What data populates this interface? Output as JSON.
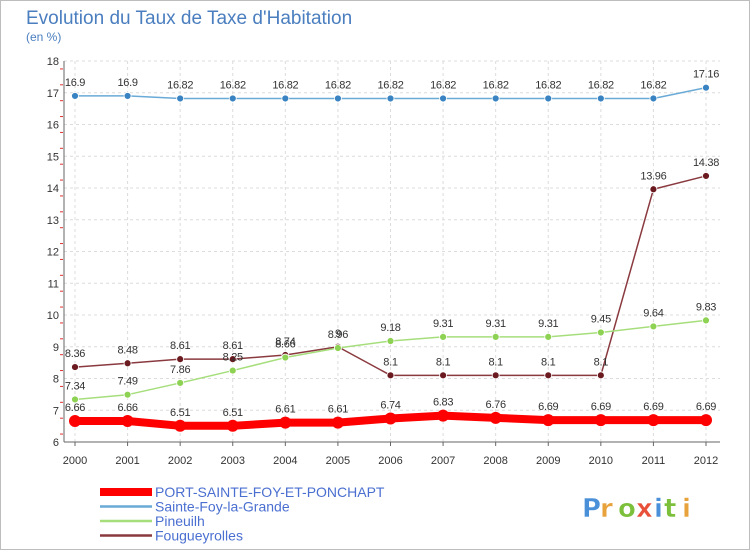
{
  "chart_data": {
    "type": "line",
    "title": "Evolution du Taux de Taxe d'Habitation",
    "subtitle": "(en %)",
    "x": [
      "2000",
      "2001",
      "2002",
      "2003",
      "2004",
      "2005",
      "2006",
      "2007",
      "2008",
      "2009",
      "2010",
      "2011",
      "2012"
    ],
    "ylim": [
      6,
      18
    ],
    "yticks": [
      "6",
      "7",
      "8",
      "9",
      "10",
      "11",
      "12",
      "13",
      "14",
      "15",
      "16",
      "17",
      "18"
    ],
    "grid": true,
    "legend_placement": "bottom-left",
    "series": [
      {
        "name": "PORT-SAINTE-FOY-ET-PONCHAPT",
        "color": "#ff0000",
        "marker_color": "#ff0000",
        "values": [
          6.66,
          6.66,
          6.51,
          6.51,
          6.61,
          6.61,
          6.74,
          6.83,
          6.76,
          6.69,
          6.69,
          6.69,
          6.69
        ],
        "labels": [
          "6.66",
          "6.66",
          "6.51",
          "6.51",
          "6.61",
          "6.61",
          "6.74",
          "6.83",
          "6.76",
          "6.69",
          "6.69",
          "6.69",
          "6.69"
        ]
      },
      {
        "name": "Sainte-Foy-la-Grande",
        "color": "#6aaad6",
        "marker_color": "#3a83c2",
        "values": [
          16.9,
          16.9,
          16.82,
          16.82,
          16.82,
          16.82,
          16.82,
          16.82,
          16.82,
          16.82,
          16.82,
          16.82,
          17.16
        ],
        "labels": [
          "16.9",
          "16.9",
          "16.82",
          "16.82",
          "16.82",
          "16.82",
          "16.82",
          "16.82",
          "16.82",
          "16.82",
          "16.82",
          "16.82",
          "17.16"
        ]
      },
      {
        "name": "Pineuilh",
        "color": "#a6de7c",
        "marker_color": "#8ed253",
        "values": [
          7.34,
          7.49,
          7.86,
          8.25,
          8.66,
          8.96,
          9.18,
          9.31,
          9.31,
          9.31,
          9.45,
          9.64,
          9.83
        ],
        "labels": [
          "7.34",
          "7.49",
          "7.86",
          "8.25",
          "8.66",
          "8.96",
          "9.18",
          "9.31",
          "9.31",
          "9.31",
          "9.45",
          "9.64",
          "9.83"
        ]
      },
      {
        "name": "Fougueyrolles",
        "color": "#8a3a3f",
        "marker_color": "#6b1a1f",
        "values": [
          8.36,
          8.48,
          8.61,
          8.61,
          8.74,
          9.0,
          8.1,
          8.1,
          8.1,
          8.1,
          8.1,
          13.96,
          14.38
        ],
        "labels": [
          "8.36",
          "8.48",
          "8.61",
          "8.61",
          "8.74",
          "9",
          "8.1",
          "8.1",
          "8.1",
          "8.1",
          "8.1",
          "13.96",
          "14.38"
        ]
      }
    ]
  },
  "watermark": {
    "text": "Proxiti"
  }
}
